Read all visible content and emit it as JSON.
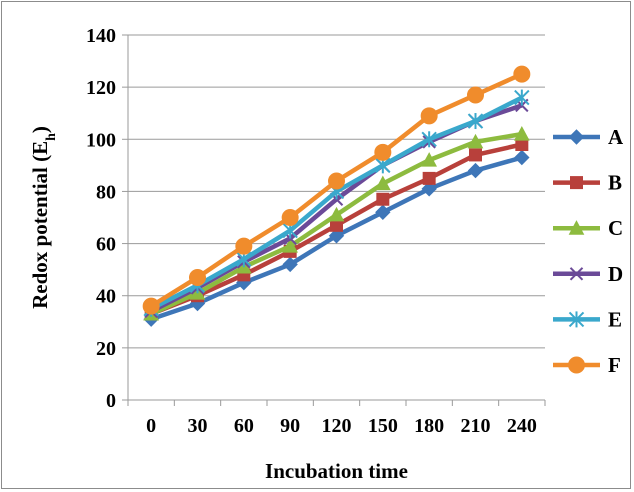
{
  "chart_data": {
    "type": "line",
    "xlabel": "Incubation time",
    "ylabel": "Redox potential (E",
    "ylabel_sub": "h",
    "ylabel_close": ")",
    "x": [
      0,
      30,
      60,
      90,
      120,
      150,
      180,
      210,
      240
    ],
    "xtick_labels": [
      "0",
      "30",
      "60",
      "90",
      "120",
      "150",
      "180",
      "210",
      "240"
    ],
    "ylim": [
      0,
      140
    ],
    "yticks": [
      0,
      20,
      40,
      60,
      80,
      100,
      120,
      140
    ],
    "grid": "horizontal",
    "legend_position": "right",
    "series": [
      {
        "name": "A",
        "color": "#3e76b8",
        "marker": "diamond",
        "values": [
          31,
          37,
          45,
          52,
          63,
          72,
          81,
          88,
          93
        ]
      },
      {
        "name": "B",
        "color": "#b8403b",
        "marker": "square",
        "values": [
          33,
          40,
          48,
          57,
          67,
          77,
          85,
          94,
          98
        ]
      },
      {
        "name": "C",
        "color": "#8dbb3f",
        "marker": "triangle",
        "values": [
          33,
          41,
          51,
          59,
          71,
          83,
          92,
          99,
          102
        ]
      },
      {
        "name": "D",
        "color": "#6b4a98",
        "marker": "x",
        "values": [
          34,
          43,
          53,
          62,
          77,
          90,
          99,
          107,
          113
        ]
      },
      {
        "name": "E",
        "color": "#3aa8cc",
        "marker": "asterisk",
        "values": [
          35,
          44,
          54,
          65,
          80,
          90,
          100,
          107,
          116
        ]
      },
      {
        "name": "F",
        "color": "#f08c2c",
        "marker": "circle",
        "values": [
          36,
          47,
          59,
          70,
          84,
          95,
          109,
          117,
          125
        ]
      }
    ]
  }
}
